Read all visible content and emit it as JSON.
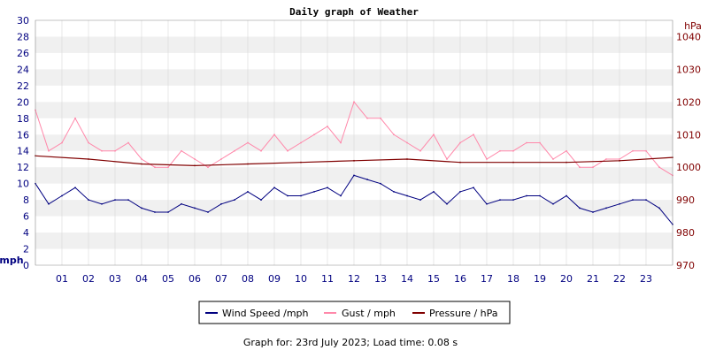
{
  "chart_data": {
    "type": "line",
    "title": "Daily graph of Weather",
    "left_axis": {
      "unit": "mph",
      "ylim": [
        0,
        30
      ],
      "ticks": [
        "0",
        "2",
        "4",
        "6",
        "8",
        "10",
        "12",
        "14",
        "16",
        "18",
        "20",
        "22",
        "24",
        "26",
        "28",
        "30"
      ]
    },
    "right_axis": {
      "unit": "hPa",
      "ylim": [
        970,
        1045
      ],
      "ticks": [
        "970",
        "980",
        "990",
        "1000",
        "1010",
        "1020",
        "1030",
        "1040"
      ]
    },
    "x_axis": {
      "xlim": [
        0,
        24
      ],
      "tick_labels": [
        "01",
        "02",
        "03",
        "04",
        "05",
        "06",
        "07",
        "08",
        "09",
        "10",
        "11",
        "12",
        "13",
        "14",
        "15",
        "16",
        "17",
        "18",
        "19",
        "20",
        "21",
        "22",
        "23"
      ]
    },
    "legend_position": "bottom",
    "grid": "horizontal-bands",
    "series": [
      {
        "name": "Wind Speed /mph",
        "axis": "left",
        "color": "#000080",
        "x": [
          0,
          0.5,
          1,
          1.5,
          2,
          2.5,
          3,
          3.5,
          4,
          4.5,
          5,
          5.5,
          6,
          6.5,
          7,
          7.5,
          8,
          8.5,
          9,
          9.5,
          10,
          10.5,
          11,
          11.5,
          12,
          12.5,
          13,
          13.5,
          14,
          14.5,
          15,
          15.5,
          16,
          16.5,
          17,
          17.5,
          18,
          18.5,
          19,
          19.5,
          20,
          20.5,
          21,
          21.5,
          22,
          22.5,
          23,
          23.5,
          24
        ],
        "values": [
          10,
          7.5,
          8.5,
          9.5,
          8,
          7.5,
          8,
          8,
          7,
          6.5,
          6.5,
          7.5,
          7,
          6.5,
          7.5,
          8,
          9,
          8,
          9.5,
          8.5,
          8.5,
          9,
          9.5,
          8.5,
          11,
          10.5,
          10,
          9,
          8.5,
          8,
          9,
          7.5,
          9,
          9.5,
          7.5,
          8,
          8,
          8.5,
          8.5,
          7.5,
          8.5,
          7,
          6.5,
          7,
          7.5,
          8,
          8,
          7,
          5
        ]
      },
      {
        "name": "Gust / mph",
        "axis": "left",
        "color": "#ff88aa",
        "x": [
          0,
          0.5,
          1,
          1.5,
          2,
          2.5,
          3,
          3.5,
          4,
          4.5,
          5,
          5.5,
          6,
          6.5,
          7,
          7.5,
          8,
          8.5,
          9,
          9.5,
          10,
          10.5,
          11,
          11.5,
          12,
          12.5,
          13,
          13.5,
          14,
          14.5,
          15,
          15.5,
          16,
          16.5,
          17,
          17.5,
          18,
          18.5,
          19,
          19.5,
          20,
          20.5,
          21,
          21.5,
          22,
          22.5,
          23,
          23.5,
          24
        ],
        "values": [
          19,
          14,
          15,
          18,
          15,
          14,
          14,
          15,
          13,
          12,
          12,
          14,
          13,
          12,
          13,
          14,
          15,
          14,
          16,
          14,
          15,
          16,
          17,
          15,
          20,
          18,
          18,
          16,
          15,
          14,
          16,
          13,
          15,
          16,
          13,
          14,
          14,
          15,
          15,
          13,
          14,
          12,
          12,
          13,
          13,
          14,
          14,
          12,
          11
        ]
      },
      {
        "name": "Pressure / hPa",
        "axis": "right",
        "color": "#800000",
        "x": [
          0,
          2,
          4,
          6,
          8,
          10,
          12,
          14,
          16,
          18,
          20,
          22,
          24
        ],
        "values": [
          1003.5,
          1002.5,
          1001,
          1000.5,
          1001,
          1001.5,
          1002,
          1002.5,
          1001.5,
          1001.5,
          1001.5,
          1002,
          1003
        ]
      }
    ],
    "footer": "Graph for: 23rd July 2023; Load time: 0.08 s"
  }
}
